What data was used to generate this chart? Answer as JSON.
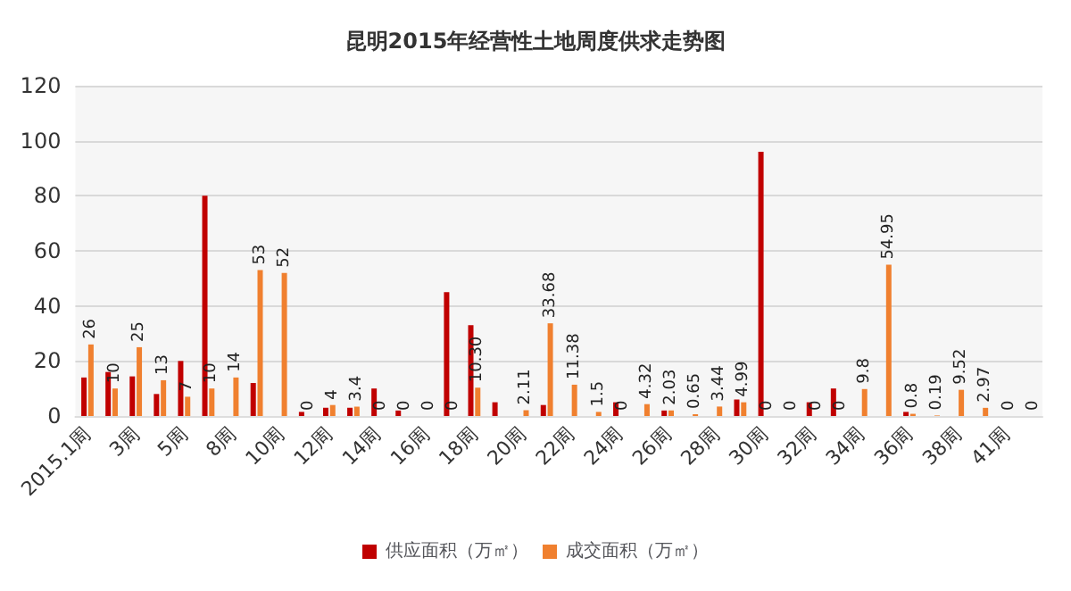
{
  "chart_data": {
    "type": "bar",
    "title": "昆明2015年经营性土地周度供求走势图",
    "categories": [
      "2015.1周",
      null,
      "3周",
      null,
      "5周",
      null,
      "8周",
      null,
      "10周",
      null,
      "12周",
      null,
      "14周",
      null,
      "16周",
      null,
      "18周",
      null,
      "20周",
      null,
      "22周",
      null,
      "24周",
      null,
      "26周",
      null,
      "28周",
      null,
      "30周",
      null,
      "32周",
      null,
      "34周",
      null,
      "36周",
      null,
      "38周",
      null,
      "41周",
      null
    ],
    "series": [
      {
        "name": "供应面积（万㎡）",
        "color": "#c00000",
        "values": [
          14,
          16,
          14.4,
          8,
          20,
          80,
          null,
          12,
          null,
          1.5,
          3,
          3,
          10,
          2,
          null,
          45,
          33,
          5,
          null,
          4,
          null,
          null,
          5,
          null,
          2,
          null,
          null,
          6,
          96,
          null,
          5,
          10,
          null,
          null,
          1.5,
          null,
          null,
          null,
          null,
          null
        ]
      },
      {
        "name": "成交面积（万㎡）",
        "color": "#f0802f",
        "values": [
          26,
          10,
          25,
          13,
          7,
          10,
          14,
          53,
          52,
          0,
          4,
          3.4,
          0,
          0,
          0,
          0,
          10.3,
          null,
          2.11,
          33.68,
          11.38,
          1.5,
          0,
          4.32,
          2.03,
          0.65,
          3.44,
          4.99,
          0,
          0,
          0,
          0,
          9.8,
          54.95,
          0.8,
          0.19,
          9.52,
          2.97,
          0,
          0
        ],
        "value_labels": [
          "26",
          "10",
          "25",
          "13",
          "7",
          "10",
          "14",
          "53",
          "52",
          "0",
          "4",
          "3.4",
          "0",
          "0",
          "0",
          "0",
          "10.30",
          null,
          "2.11",
          "33.68",
          "11.38",
          "1.5",
          "0",
          "4.32",
          "2.03",
          "0.65",
          "3.44",
          "4.99",
          "0",
          "0",
          "0",
          "0",
          "9.8",
          "54.95",
          "0.8",
          "0.19",
          "9.52",
          "2.97",
          "0",
          "0"
        ]
      }
    ],
    "ylim": [
      0,
      120
    ],
    "yticks": [
      0,
      20,
      40,
      60,
      80,
      100,
      120
    ],
    "grid": "y",
    "legend": "bottom"
  }
}
